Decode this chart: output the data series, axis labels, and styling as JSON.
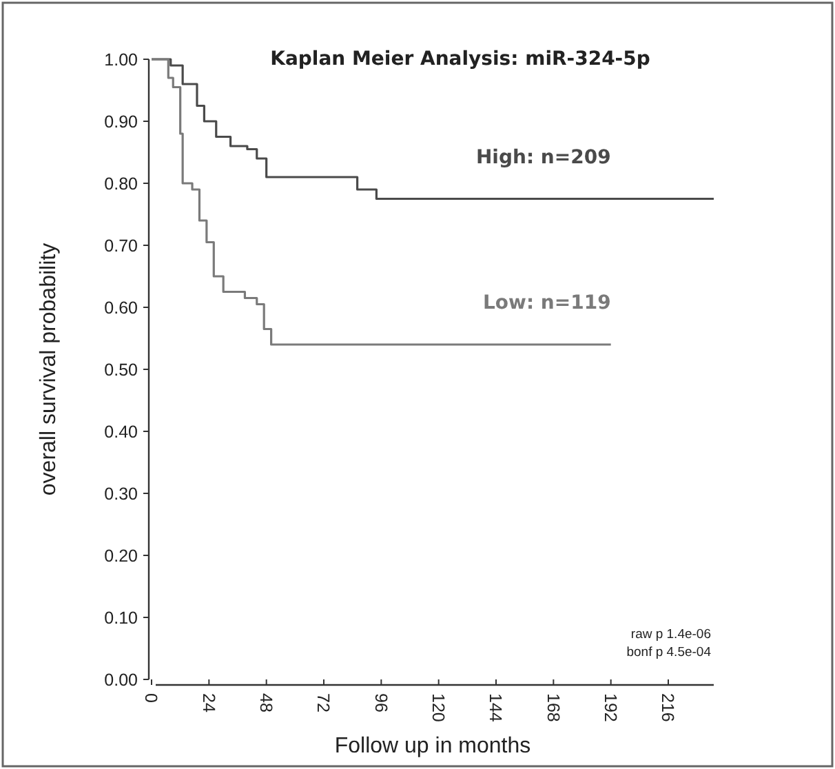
{
  "chart_data": {
    "type": "step",
    "title": "Kaplan Meier Analysis: miR-324-5p",
    "xlabel": "Follow up in months",
    "ylabel": "overall survival probability",
    "xlim": [
      0,
      235
    ],
    "ylim": [
      0,
      1
    ],
    "xticks": [
      0,
      24,
      48,
      72,
      96,
      120,
      144,
      168,
      192,
      216
    ],
    "yticks": [
      {
        "value": 0,
        "label": "0.00"
      },
      {
        "value": 0.1,
        "label": "0.10"
      },
      {
        "value": 0.2,
        "label": "0.20"
      },
      {
        "value": 0.3,
        "label": "0.30"
      },
      {
        "value": 0.4,
        "label": "0.40"
      },
      {
        "value": 0.5,
        "label": "0.50"
      },
      {
        "value": 0.6,
        "label": "0.60"
      },
      {
        "value": 0.7,
        "label": "0.70"
      },
      {
        "value": 0.8,
        "label": "0.80"
      },
      {
        "value": 0.9,
        "label": "0.90"
      },
      {
        "value": 1,
        "label": "1.00"
      }
    ],
    "series": [
      {
        "name": "High: n=209",
        "color": "#4a4a4a",
        "x": [
          0,
          8,
          13,
          19,
          22,
          27,
          33,
          40,
          44,
          48,
          86,
          94,
          235
        ],
        "values": [
          1,
          0.99,
          0.96,
          0.925,
          0.9,
          0.875,
          0.86,
          0.855,
          0.84,
          0.81,
          0.79,
          0.775,
          0.775
        ]
      },
      {
        "name": "Low: n=119",
        "color": "#7a7a7a",
        "x": [
          0,
          7,
          9,
          12,
          13,
          17,
          20,
          23,
          26,
          30,
          39,
          44,
          47,
          50,
          192
        ],
        "values": [
          1,
          0.97,
          0.955,
          0.88,
          0.8,
          0.79,
          0.74,
          0.705,
          0.65,
          0.625,
          0.615,
          0.605,
          0.565,
          0.54,
          0.54
        ]
      }
    ],
    "annotations": [
      "raw p 1.4e-06",
      "bonf p 4.5e-04"
    ],
    "grid": false,
    "marker": "none",
    "line_style": "solid"
  }
}
